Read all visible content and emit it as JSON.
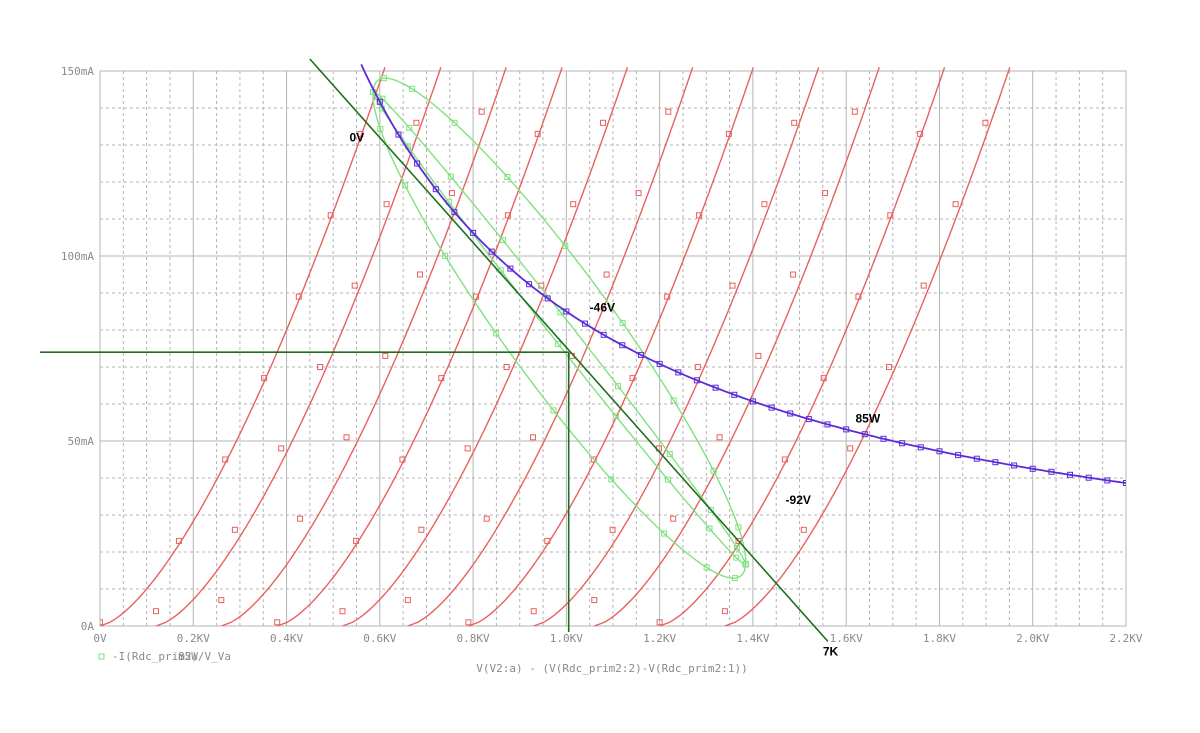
{
  "chart_data": {
    "type": "line",
    "xlabel": "V(V2:a) - (V(Rdc_prim2:2)-V(Rdc_prim2:1))",
    "xlim": [
      0,
      2200
    ],
    "ylim": [
      0,
      150
    ],
    "x_ticks": [
      0,
      200,
      400,
      600,
      800,
      1000,
      1200,
      1400,
      1600,
      1800,
      2000,
      2200
    ],
    "x_tick_labels": [
      "0V",
      "0.2KV",
      "0.4KV",
      "0.6KV",
      "0.8KV",
      "1.0KV",
      "1.2KV",
      "1.4KV",
      "1.6KV",
      "1.8KV",
      "2.0KV",
      "2.2KV"
    ],
    "y_ticks": [
      0,
      50,
      100,
      150
    ],
    "y_tick_labels": [
      "0A",
      "50mA",
      "100mA",
      "150mA"
    ],
    "grid": true,
    "legend": {
      "placement": "bottom-left",
      "entries": [
        "-I(Rdc_prim2)",
        "85W/V_Va"
      ]
    },
    "colors": {
      "plate_curves": "#e8615d",
      "power_curve": "#5b2bd8",
      "load_ellipse": "#7fe27f",
      "load_line": "#1f6e1f",
      "operating_point": "#1f6e1f",
      "grid": "#b4b4b4"
    },
    "plate_curves": {
      "exponent": 1.5,
      "start_x": [
        0,
        120,
        260,
        380,
        520,
        660,
        790,
        930,
        1060,
        1200,
        1340
      ],
      "mA_per_V15": 0.01
    },
    "power_curve": {
      "name": "85W",
      "watts": 85,
      "x_range": [
        560,
        2200
      ]
    },
    "load_line": {
      "name": "7K",
      "x": [
        450,
        1550
      ],
      "y": [
        150,
        -2
      ]
    },
    "operating_point": {
      "x": 1005,
      "y": 74
    },
    "load_ellipse": {
      "center": [
        985,
        80.5
      ],
      "loops": [
        {
          "a": 460,
          "b": 26,
          "angle_deg": -29.7
        },
        {
          "a": 460,
          "b": 5,
          "angle_deg": -29.7
        }
      ]
    },
    "annotations": [
      {
        "text": "0V",
        "x": 535,
        "y": 131
      },
      {
        "text": "-46V",
        "x": 1050,
        "y": 85
      },
      {
        "text": "85W",
        "x": 1620,
        "y": 55
      },
      {
        "text": "-92V",
        "x": 1470,
        "y": 33
      },
      {
        "text": "7K",
        "x": 1550,
        "y": -8
      }
    ]
  }
}
